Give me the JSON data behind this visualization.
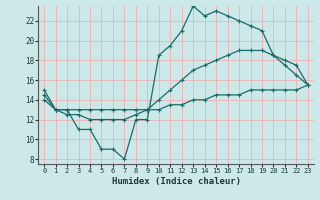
{
  "xlabel": "Humidex (Indice chaleur)",
  "bg_color": "#cce8e8",
  "grid_color": "#e8b8b8",
  "line_color": "#1a6b6b",
  "x_ticks": [
    0,
    1,
    2,
    3,
    4,
    5,
    6,
    7,
    8,
    9,
    10,
    11,
    12,
    13,
    14,
    15,
    16,
    17,
    18,
    19,
    20,
    21,
    22,
    23
  ],
  "y_ticks": [
    8,
    10,
    12,
    14,
    16,
    18,
    20,
    22
  ],
  "xlim": [
    -0.5,
    23.5
  ],
  "ylim": [
    7.5,
    23.5
  ],
  "line1_y": [
    15,
    13,
    13,
    11,
    11,
    9,
    9,
    8,
    12,
    12,
    18.5,
    19.5,
    21,
    23.5,
    22.5,
    23,
    22.5,
    22,
    21.5,
    21,
    18.5,
    17.5,
    16.5,
    15.5
  ],
  "line2_y": [
    14.5,
    13,
    12.5,
    12.5,
    12,
    12,
    12,
    12,
    12.5,
    13,
    14,
    15,
    16,
    17,
    17.5,
    18,
    18.5,
    19,
    19,
    19,
    18.5,
    18,
    17.5,
    15.5
  ],
  "line3_y": [
    14,
    13,
    13,
    13,
    13,
    13,
    13,
    13,
    13,
    13,
    13,
    13.5,
    13.5,
    14,
    14,
    14.5,
    14.5,
    14.5,
    15,
    15,
    15,
    15,
    15,
    15.5
  ]
}
